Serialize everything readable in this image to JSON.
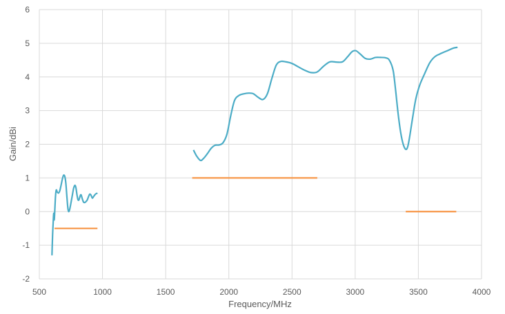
{
  "chart_data": {
    "type": "line",
    "xlabel": "Frequency/MHz",
    "ylabel": "Gain/dBi",
    "xlim": [
      500,
      4000
    ],
    "ylim": [
      -2,
      6
    ],
    "x_ticks": [
      "500",
      "1000",
      "1500",
      "2000",
      "2500",
      "3000",
      "3500",
      "4000"
    ],
    "y_ticks": [
      "-2",
      "-1",
      "0",
      "1",
      "2",
      "3",
      "4",
      "5",
      "6"
    ],
    "grid": "vertical and horizontal",
    "colors": {
      "gain": "#4bacc6",
      "spec": "#f79646",
      "grid": "#d9d9d9",
      "text": "#595959"
    },
    "series": [
      {
        "role": "gain",
        "segments": [
          [
            [
              600,
              -1.3
            ],
            [
              605,
              -0.7
            ],
            [
              610,
              -0.3
            ],
            [
              614,
              -0.05
            ],
            [
              618,
              -0.25
            ],
            [
              622,
              0.0
            ],
            [
              628,
              0.45
            ],
            [
              634,
              0.64
            ],
            [
              642,
              0.58
            ],
            [
              652,
              0.55
            ],
            [
              662,
              0.62
            ],
            [
              672,
              0.78
            ],
            [
              682,
              0.96
            ],
            [
              692,
              1.08
            ],
            [
              702,
              1.04
            ],
            [
              710,
              0.84
            ],
            [
              718,
              0.45
            ],
            [
              726,
              0.1
            ],
            [
              732,
              0.0
            ],
            [
              740,
              0.06
            ],
            [
              750,
              0.25
            ],
            [
              762,
              0.5
            ],
            [
              772,
              0.7
            ],
            [
              782,
              0.78
            ],
            [
              790,
              0.7
            ],
            [
              798,
              0.5
            ],
            [
              806,
              0.35
            ],
            [
              814,
              0.35
            ],
            [
              822,
              0.45
            ],
            [
              830,
              0.5
            ],
            [
              840,
              0.38
            ],
            [
              850,
              0.28
            ],
            [
              860,
              0.27
            ],
            [
              870,
              0.3
            ],
            [
              880,
              0.35
            ],
            [
              890,
              0.45
            ],
            [
              900,
              0.52
            ],
            [
              910,
              0.48
            ],
            [
              920,
              0.4
            ],
            [
              930,
              0.45
            ],
            [
              945,
              0.52
            ],
            [
              960,
              0.55
            ]
          ],
          [
            [
              1720,
              1.83
            ],
            [
              1745,
              1.65
            ],
            [
              1775,
              1.52
            ],
            [
              1800,
              1.58
            ],
            [
              1830,
              1.72
            ],
            [
              1860,
              1.88
            ],
            [
              1890,
              1.97
            ],
            [
              1925,
              1.98
            ],
            [
              1955,
              2.05
            ],
            [
              1985,
              2.3
            ],
            [
              2015,
              2.85
            ],
            [
              2045,
              3.3
            ],
            [
              2080,
              3.45
            ],
            [
              2120,
              3.5
            ],
            [
              2160,
              3.52
            ],
            [
              2195,
              3.5
            ],
            [
              2230,
              3.4
            ],
            [
              2270,
              3.33
            ],
            [
              2305,
              3.5
            ],
            [
              2340,
              3.95
            ],
            [
              2375,
              4.35
            ],
            [
              2410,
              4.46
            ],
            [
              2450,
              4.45
            ],
            [
              2500,
              4.4
            ],
            [
              2550,
              4.3
            ],
            [
              2600,
              4.2
            ],
            [
              2650,
              4.13
            ],
            [
              2700,
              4.15
            ],
            [
              2750,
              4.32
            ],
            [
              2800,
              4.45
            ],
            [
              2855,
              4.44
            ],
            [
              2900,
              4.45
            ],
            [
              2940,
              4.6
            ],
            [
              2975,
              4.75
            ],
            [
              3005,
              4.78
            ],
            [
              3040,
              4.68
            ],
            [
              3080,
              4.55
            ],
            [
              3120,
              4.53
            ],
            [
              3160,
              4.58
            ],
            [
              3200,
              4.58
            ],
            [
              3240,
              4.57
            ],
            [
              3270,
              4.5
            ],
            [
              3300,
              4.2
            ],
            [
              3320,
              3.6
            ],
            [
              3340,
              2.9
            ],
            [
              3360,
              2.35
            ],
            [
              3380,
              2.0
            ],
            [
              3400,
              1.85
            ],
            [
              3415,
              1.92
            ],
            [
              3430,
              2.2
            ],
            [
              3455,
              2.8
            ],
            [
              3480,
              3.35
            ],
            [
              3510,
              3.75
            ],
            [
              3550,
              4.1
            ],
            [
              3590,
              4.42
            ],
            [
              3630,
              4.6
            ],
            [
              3680,
              4.7
            ],
            [
              3730,
              4.78
            ],
            [
              3780,
              4.86
            ],
            [
              3810,
              4.88
            ]
          ]
        ]
      },
      {
        "role": "spec",
        "segments": [
          [
            [
              620,
              -0.5
            ],
            [
              960,
              -0.5
            ]
          ],
          [
            [
              1710,
              1.0
            ],
            [
              2700,
              1.0
            ]
          ],
          [
            [
              3400,
              0.0
            ],
            [
              3800,
              0.0
            ]
          ]
        ]
      }
    ]
  }
}
